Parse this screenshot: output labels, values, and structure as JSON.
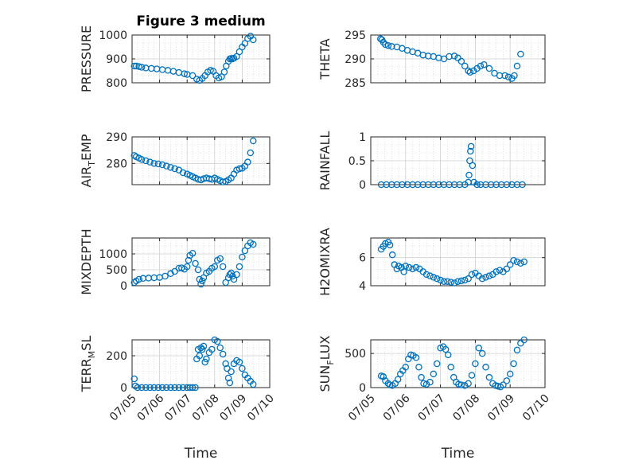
{
  "figure_title": "Figure 3 medium",
  "colors": {
    "marker": "#0072BD",
    "axis": "#262626",
    "grid": "#d0d0d0"
  },
  "chart_data": [
    {
      "type": "scatter",
      "id": "pressure",
      "title": "Figure 3 medium",
      "ylabel": "PRESSURE",
      "ylim": [
        800,
        1000
      ],
      "yticks": [
        800,
        900,
        1000
      ],
      "xlabel": "",
      "xlim": [
        0,
        5
      ],
      "series": [
        {
          "x": [
            0.08,
            0.15,
            0.25,
            0.35,
            0.5,
            0.7,
            0.9,
            1.1,
            1.3,
            1.5,
            1.7,
            1.9,
            2.0,
            2.2,
            2.35,
            2.45,
            2.55,
            2.65,
            2.75,
            2.85,
            2.95,
            3.05,
            3.15,
            3.25,
            3.35,
            3.42,
            3.5,
            3.55,
            3.6,
            3.65,
            3.7,
            3.8,
            3.9,
            4.0,
            4.1,
            4.2,
            4.3,
            4.4
          ],
          "y": [
            870,
            870,
            868,
            865,
            862,
            860,
            858,
            855,
            852,
            848,
            843,
            838,
            835,
            830,
            815,
            810,
            818,
            830,
            845,
            852,
            848,
            830,
            820,
            825,
            845,
            870,
            890,
            900,
            902,
            900,
            903,
            910,
            930,
            950,
            965,
            985,
            995,
            980
          ]
        }
      ]
    },
    {
      "type": "scatter",
      "id": "theta",
      "ylabel": "THETA",
      "ylim": [
        285,
        295
      ],
      "yticks": [
        285,
        290,
        295
      ],
      "xlabel": "",
      "xlim": [
        0,
        5
      ],
      "series": [
        {
          "x": [
            0.28,
            0.32,
            0.36,
            0.42,
            0.5,
            0.6,
            0.75,
            0.9,
            1.05,
            1.2,
            1.35,
            1.5,
            1.65,
            1.8,
            1.95,
            2.1,
            2.25,
            2.4,
            2.5,
            2.6,
            2.7,
            2.8,
            2.85,
            2.95,
            3.05,
            3.15,
            3.25,
            3.4,
            3.55,
            3.7,
            3.85,
            3.95,
            4.05,
            4.12,
            4.2,
            4.3
          ],
          "y": [
            294.2,
            294.0,
            293.5,
            293.0,
            292.8,
            292.6,
            292.5,
            292.2,
            291.8,
            291.5,
            291.2,
            290.8,
            290.6,
            290.5,
            290.2,
            290.0,
            290.5,
            290.6,
            290.2,
            289.5,
            288.5,
            287.5,
            287.2,
            287.5,
            288.0,
            288.5,
            288.8,
            288.0,
            287.0,
            286.5,
            286.5,
            286.2,
            285.9,
            286.5,
            288.5,
            291.0
          ]
        }
      ]
    },
    {
      "type": "scatter",
      "id": "air_temp",
      "ylabel": "AIR",
      "ylabel_sub": "T",
      "ylabel_rest": "EMP",
      "ylim": [
        272,
        290
      ],
      "yticks": [
        280,
        290
      ],
      "xlabel": "",
      "xlim": [
        0,
        5
      ],
      "series": [
        {
          "x": [
            0.08,
            0.15,
            0.25,
            0.35,
            0.5,
            0.65,
            0.8,
            0.95,
            1.1,
            1.25,
            1.4,
            1.55,
            1.7,
            1.85,
            2.0,
            2.1,
            2.2,
            2.3,
            2.4,
            2.5,
            2.6,
            2.7,
            2.8,
            2.9,
            3.0,
            3.1,
            3.2,
            3.3,
            3.4,
            3.5,
            3.6,
            3.7,
            3.8,
            3.9,
            4.0,
            4.1,
            4.2,
            4.3,
            4.4
          ],
          "y": [
            283,
            282.5,
            282,
            281.5,
            281,
            280.5,
            280,
            279.8,
            279.5,
            279,
            278.5,
            278,
            277.5,
            276.5,
            276,
            275.5,
            275,
            274.5,
            274,
            273.8,
            274.2,
            274.5,
            274.2,
            274,
            274.5,
            274,
            273.5,
            273,
            273.2,
            273.8,
            274.5,
            276,
            277.5,
            278,
            278.2,
            279,
            280.5,
            284,
            288.5
          ]
        }
      ]
    },
    {
      "type": "scatter",
      "id": "rainfall",
      "ylabel": "RAINFALL",
      "ylim": [
        0,
        1
      ],
      "yticks": [
        0,
        0.5,
        1
      ],
      "xlabel": "",
      "xlim": [
        0,
        5
      ],
      "series": [
        {
          "x": [
            0.3,
            0.45,
            0.6,
            0.75,
            0.9,
            1.05,
            1.2,
            1.35,
            1.5,
            1.65,
            1.8,
            1.95,
            2.1,
            2.25,
            2.4,
            2.55,
            2.7,
            2.8,
            2.82,
            2.84,
            2.86,
            2.88,
            2.92,
            2.96,
            3.05,
            3.15,
            3.3,
            3.45,
            3.6,
            3.75,
            3.9,
            4.05,
            4.2,
            4.35
          ],
          "y": [
            0,
            0,
            0,
            0,
            0,
            0,
            0,
            0,
            0,
            0,
            0,
            0,
            0,
            0,
            0,
            0,
            0,
            0.05,
            0.2,
            0.5,
            0.7,
            0.8,
            0.4,
            0.05,
            0,
            0,
            0,
            0,
            0,
            0,
            0,
            0,
            0,
            0
          ]
        }
      ]
    },
    {
      "type": "scatter",
      "id": "mixdepth",
      "ylabel": "MIXDEPTH",
      "ylim": [
        0,
        1500
      ],
      "yticks": [
        0,
        500,
        1000
      ],
      "xlabel": "",
      "xlim": [
        0,
        5
      ],
      "series": [
        {
          "x": [
            0.08,
            0.15,
            0.25,
            0.4,
            0.6,
            0.8,
            1.0,
            1.2,
            1.4,
            1.55,
            1.7,
            1.8,
            1.9,
            2.0,
            2.05,
            2.1,
            2.2,
            2.3,
            2.4,
            2.45,
            2.5,
            2.55,
            2.6,
            2.7,
            2.8,
            2.9,
            3.0,
            3.1,
            3.2,
            3.3,
            3.4,
            3.5,
            3.55,
            3.6,
            3.65,
            3.7,
            3.8,
            3.9,
            4.0,
            4.1,
            4.2,
            4.3,
            4.4
          ],
          "y": [
            100,
            150,
            200,
            230,
            240,
            250,
            260,
            300,
            380,
            450,
            550,
            560,
            520,
            600,
            800,
            950,
            1020,
            700,
            500,
            200,
            50,
            150,
            250,
            400,
            450,
            550,
            600,
            800,
            850,
            600,
            100,
            250,
            350,
            400,
            300,
            200,
            350,
            600,
            900,
            1100,
            1250,
            1350,
            1300
          ]
        }
      ]
    },
    {
      "type": "scatter",
      "id": "h2omixra",
      "ylabel": "H2OMIXRA",
      "ylim": [
        4,
        7.4
      ],
      "yticks": [
        4,
        6
      ],
      "xlabel": "",
      "xlim": [
        0,
        5
      ],
      "series": [
        {
          "x": [
            0.3,
            0.36,
            0.42,
            0.5,
            0.55,
            0.62,
            0.68,
            0.75,
            0.8,
            0.88,
            0.95,
            1.0,
            1.1,
            1.2,
            1.3,
            1.4,
            1.5,
            1.6,
            1.7,
            1.8,
            1.9,
            2.0,
            2.1,
            2.2,
            2.3,
            2.4,
            2.5,
            2.6,
            2.7,
            2.8,
            2.9,
            3.0,
            3.1,
            3.2,
            3.3,
            3.4,
            3.5,
            3.6,
            3.7,
            3.8,
            3.9,
            4.0,
            4.1,
            4.2,
            4.3,
            4.4
          ],
          "y": [
            6.6,
            6.8,
            7.0,
            7.1,
            6.9,
            6.2,
            5.5,
            5.2,
            5.4,
            5.3,
            5.0,
            5.4,
            5.3,
            5.2,
            5.3,
            5.2,
            5.0,
            4.8,
            4.7,
            4.6,
            4.5,
            4.4,
            4.3,
            4.3,
            4.25,
            4.2,
            4.3,
            4.35,
            4.4,
            4.5,
            4.8,
            4.9,
            4.7,
            4.5,
            4.6,
            4.7,
            4.8,
            5.0,
            5.1,
            5.0,
            5.2,
            5.5,
            5.8,
            5.7,
            5.6,
            5.7
          ]
        }
      ]
    },
    {
      "type": "scatter",
      "id": "terr_msl",
      "ylabel": "TERR",
      "ylabel_sub": "M",
      "ylabel_rest": "SL",
      "ylim": [
        0,
        300
      ],
      "yticks": [
        0,
        200
      ],
      "xlabel": "Time",
      "xlim": [
        0,
        5
      ],
      "xticks": [
        0,
        1,
        2,
        3,
        4,
        5
      ],
      "xticklabels": [
        "07/05",
        "07/06",
        "07/07",
        "07/08",
        "07/09",
        "07/10"
      ],
      "series": [
        {
          "x": [
            0.08,
            0.12,
            0.2,
            0.35,
            0.5,
            0.65,
            0.8,
            0.95,
            1.1,
            1.25,
            1.4,
            1.55,
            1.7,
            1.85,
            2.0,
            2.1,
            2.2,
            2.3,
            2.35,
            2.4,
            2.45,
            2.5,
            2.55,
            2.6,
            2.65,
            2.7,
            2.8,
            2.9,
            3.0,
            3.1,
            3.2,
            3.3,
            3.4,
            3.45,
            3.5,
            3.55,
            3.6,
            3.7,
            3.8,
            3.9,
            4.0,
            4.1,
            4.2,
            4.3,
            4.4
          ],
          "y": [
            55,
            10,
            0,
            0,
            0,
            0,
            0,
            0,
            0,
            0,
            0,
            0,
            0,
            0,
            0,
            0,
            0,
            0,
            180,
            240,
            200,
            250,
            240,
            260,
            160,
            180,
            220,
            240,
            300,
            290,
            250,
            210,
            150,
            120,
            60,
            30,
            100,
            150,
            170,
            160,
            120,
            80,
            60,
            40,
            20
          ]
        }
      ]
    },
    {
      "type": "scatter",
      "id": "sun_flux",
      "ylabel": "SUN",
      "ylabel_sub": "F",
      "ylabel_rest": "LUX",
      "ylim": [
        0,
        700
      ],
      "yticks": [
        0,
        500
      ],
      "xlabel": "Time",
      "xlim": [
        0,
        5
      ],
      "xticks": [
        0,
        1,
        2,
        3,
        4,
        5
      ],
      "xticklabels": [
        "07/05",
        "07/06",
        "07/07",
        "07/08",
        "07/09",
        "07/10"
      ],
      "series": [
        {
          "x": [
            0.3,
            0.36,
            0.42,
            0.5,
            0.55,
            0.62,
            0.7,
            0.78,
            0.85,
            0.92,
            1.0,
            1.08,
            1.15,
            1.22,
            1.3,
            1.38,
            1.45,
            1.52,
            1.6,
            1.7,
            1.8,
            1.9,
            2.0,
            2.08,
            2.15,
            2.22,
            2.3,
            2.38,
            2.45,
            2.52,
            2.6,
            2.7,
            2.8,
            2.9,
            3.0,
            3.1,
            3.2,
            3.3,
            3.4,
            3.5,
            3.58,
            3.65,
            3.72,
            3.8,
            3.9,
            4.0,
            4.1,
            4.2,
            4.3,
            4.4
          ],
          "y": [
            170,
            160,
            100,
            60,
            40,
            30,
            60,
            120,
            200,
            250,
            300,
            420,
            480,
            470,
            440,
            300,
            150,
            60,
            50,
            80,
            200,
            350,
            580,
            600,
            560,
            480,
            300,
            150,
            80,
            50,
            40,
            30,
            60,
            180,
            350,
            580,
            500,
            300,
            150,
            60,
            30,
            20,
            10,
            40,
            100,
            200,
            350,
            550,
            650,
            700
          ]
        }
      ]
    }
  ]
}
